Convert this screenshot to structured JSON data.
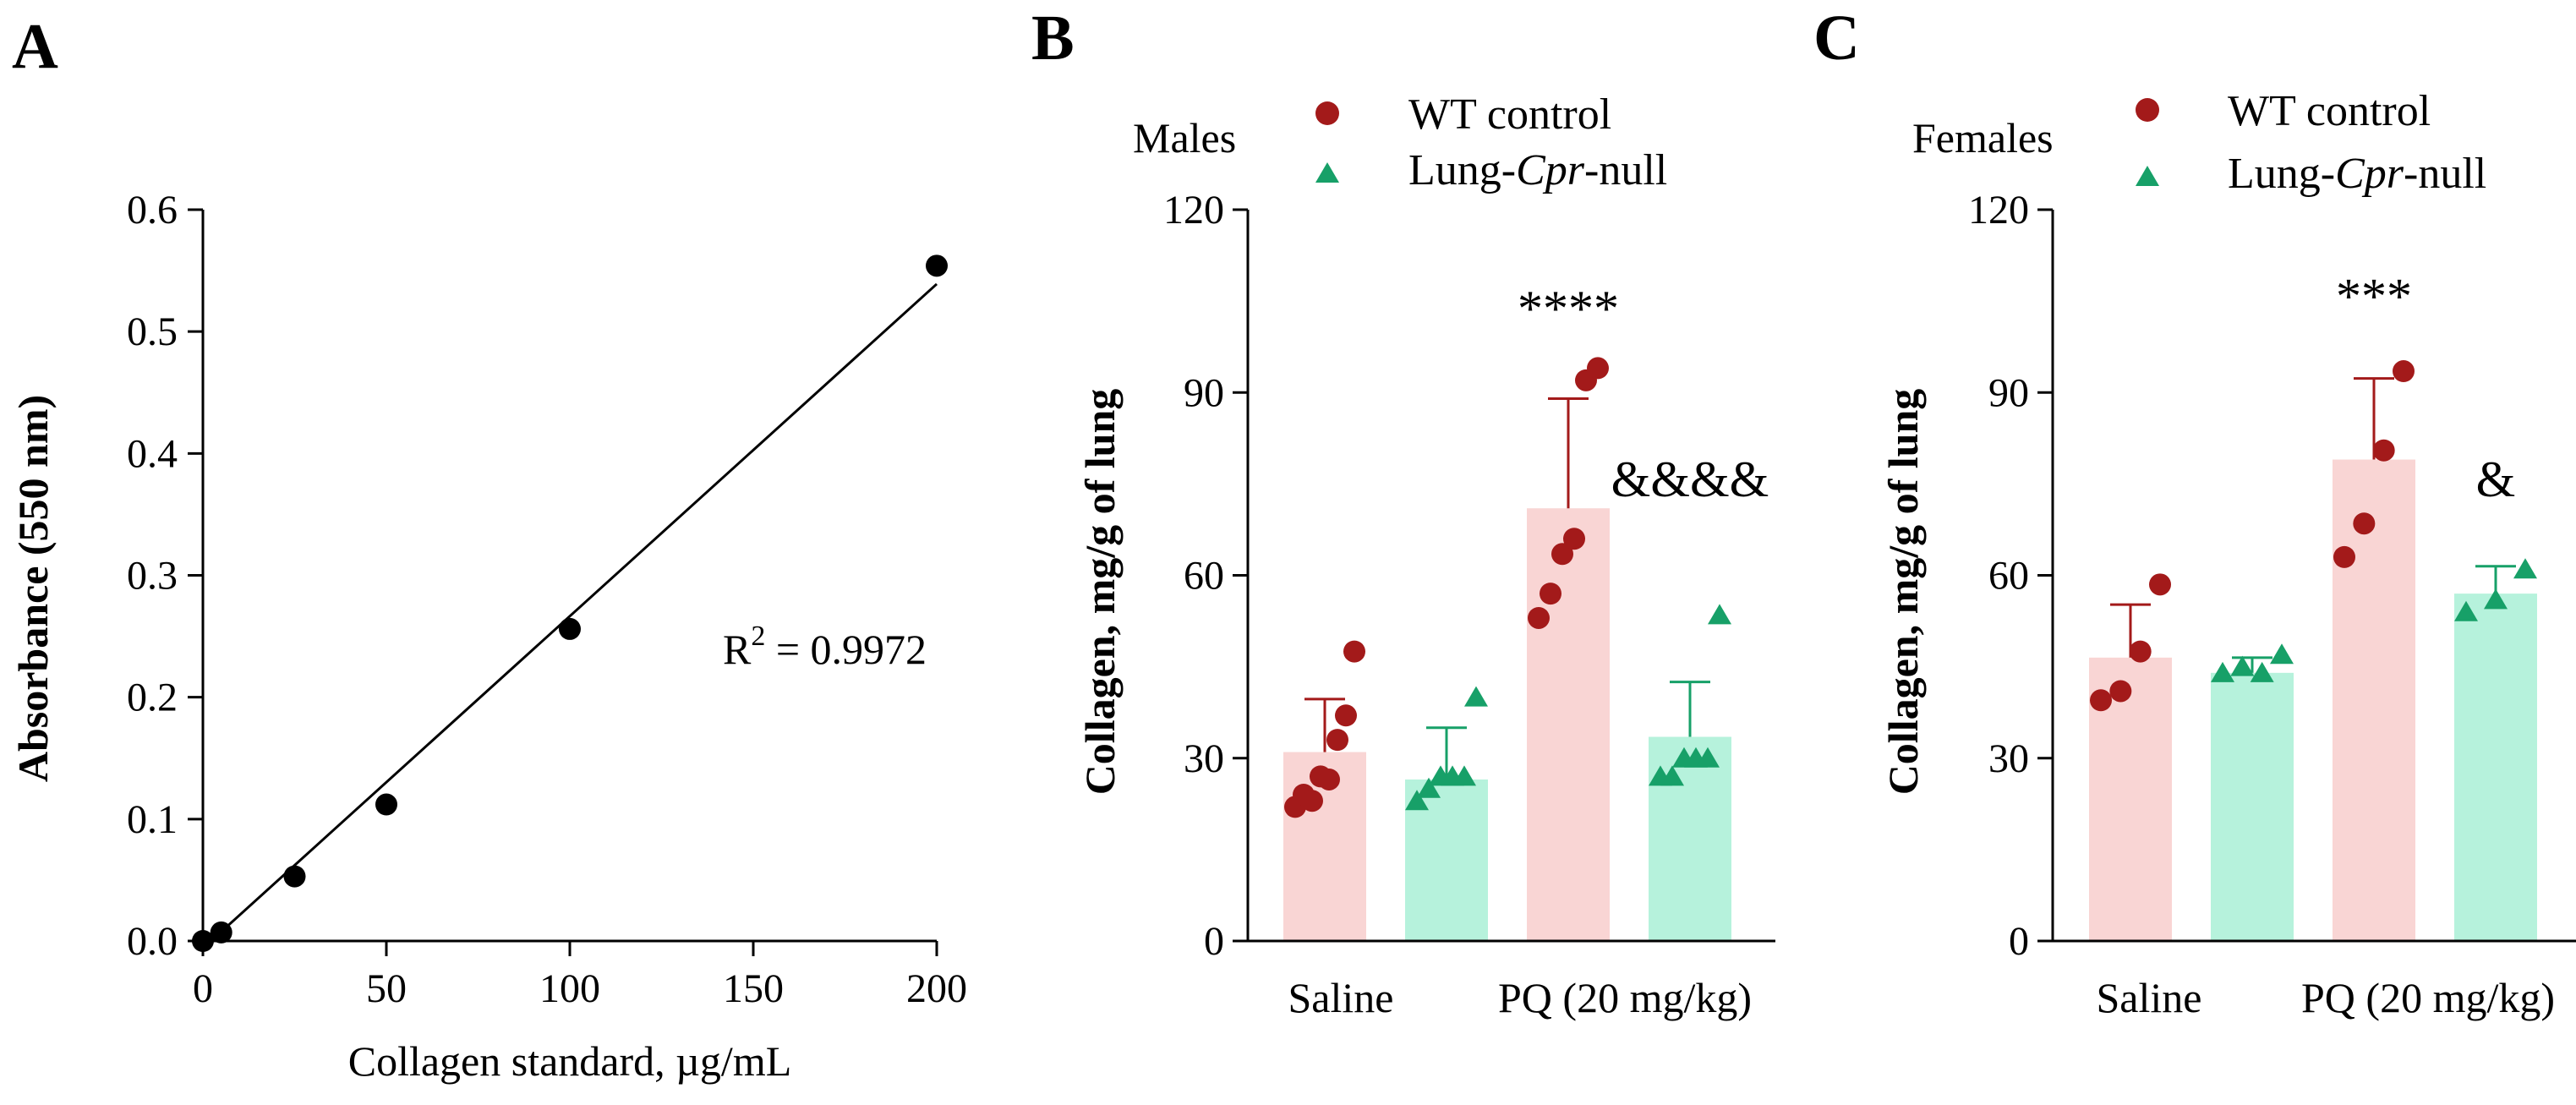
{
  "figure": {
    "panels": [
      "A",
      "B",
      "C"
    ]
  },
  "colors": {
    "wt_point": "#a31a1a",
    "wt_bar": "#f9d5d4",
    "ko_point": "#17a068",
    "ko_bar": "#b6f2dc",
    "ink": "#000000"
  },
  "chart_data": [
    {
      "panel": "A",
      "type": "scatter",
      "title": "",
      "xlabel": "Collagen standard, µg/mL",
      "ylabel": "Absorbance (550 nm)",
      "xlim": [
        0,
        200
      ],
      "ylim": [
        0,
        0.6
      ],
      "xticks": [
        0,
        50,
        100,
        150,
        200
      ],
      "yticks": [
        0.0,
        0.1,
        0.2,
        0.3,
        0.4,
        0.5,
        0.6
      ],
      "ytick_labels": [
        "0.0",
        "0.1",
        "0.2",
        "0.3",
        "0.4",
        "0.5",
        "0.6"
      ],
      "series": [
        {
          "name": "Collagen standard",
          "x": [
            0,
            5,
            25,
            50,
            100,
            200
          ],
          "y": [
            0.0,
            0.007,
            0.053,
            0.112,
            0.256,
            0.554
          ]
        }
      ],
      "fit_line": {
        "x": [
          0,
          200
        ],
        "y": [
          -0.006,
          0.539
        ]
      },
      "annotation": {
        "prefix": "R",
        "sup": "2",
        "value": " = 0.9972"
      }
    },
    {
      "panel": "B",
      "type": "bar",
      "group_label": "Males",
      "ylabel": "Collagen, mg/g of lung",
      "ylim": [
        0,
        120
      ],
      "yticks": [
        0,
        30,
        60,
        90,
        120
      ],
      "categories": [
        "Saline",
        "PQ (20 mg/kg)"
      ],
      "legend": [
        {
          "name": "WT control",
          "prefix": "WT control",
          "italic": "",
          "suffix": "",
          "marker": "circle"
        },
        {
          "name": "Lung-Cpr-null",
          "prefix": "Lung-",
          "italic": "Cpr",
          "suffix": "-null",
          "marker": "triangle"
        }
      ],
      "bars": [
        {
          "group": 0,
          "series": "WT control",
          "mean": 31,
          "sd": 8.7,
          "points": [
            22,
            24,
            23,
            27,
            26.5,
            33,
            37,
            47.5
          ]
        },
        {
          "group": 0,
          "series": "Lung-Cpr-null",
          "mean": 26.5,
          "sd": 8.5,
          "points": [
            23,
            25,
            27,
            27,
            27,
            40
          ]
        },
        {
          "group": 1,
          "series": "WT control",
          "mean": 71,
          "sd": 18,
          "points": [
            53,
            57,
            63.5,
            66,
            92,
            94
          ]
        },
        {
          "group": 1,
          "series": "Lung-Cpr-null",
          "mean": 33.5,
          "sd": 9,
          "points": [
            27,
            27,
            30,
            30,
            30,
            53.5
          ]
        }
      ],
      "significance": [
        {
          "label": "****",
          "bar_index": 2,
          "y": 101
        },
        {
          "label": "&&&&",
          "bar_index": 3,
          "y": 73
        }
      ]
    },
    {
      "panel": "C",
      "type": "bar",
      "group_label": "Females",
      "ylabel": "Collagen, mg/g of lung",
      "ylim": [
        0,
        120
      ],
      "yticks": [
        0,
        30,
        60,
        90,
        120
      ],
      "categories": [
        "Saline",
        "PQ (20 mg/kg)"
      ],
      "legend": [
        {
          "name": "WT control",
          "prefix": "WT control",
          "italic": "",
          "suffix": "",
          "marker": "circle"
        },
        {
          "name": "Lung-Cpr-null",
          "prefix": "Lung-",
          "italic": "Cpr",
          "suffix": "-null",
          "marker": "triangle"
        }
      ],
      "bars": [
        {
          "group": 0,
          "series": "WT control",
          "mean": 46.5,
          "sd": 8.7,
          "points": [
            39.5,
            41,
            47.5,
            58.5
          ]
        },
        {
          "group": 0,
          "series": "Lung-Cpr-null",
          "mean": 44,
          "sd": 2.5,
          "points": [
            44,
            45,
            44,
            47
          ]
        },
        {
          "group": 1,
          "series": "WT control",
          "mean": 79,
          "sd": 13.3,
          "points": [
            63,
            68.5,
            80.5,
            93.5
          ]
        },
        {
          "group": 1,
          "series": "Lung-Cpr-null",
          "mean": 57,
          "sd": 4.5,
          "points": [
            54,
            56,
            61
          ]
        }
      ],
      "significance": [
        {
          "label": "***",
          "bar_index": 2,
          "y": 103
        },
        {
          "label": "&",
          "bar_index": 3,
          "y": 73
        }
      ]
    }
  ]
}
